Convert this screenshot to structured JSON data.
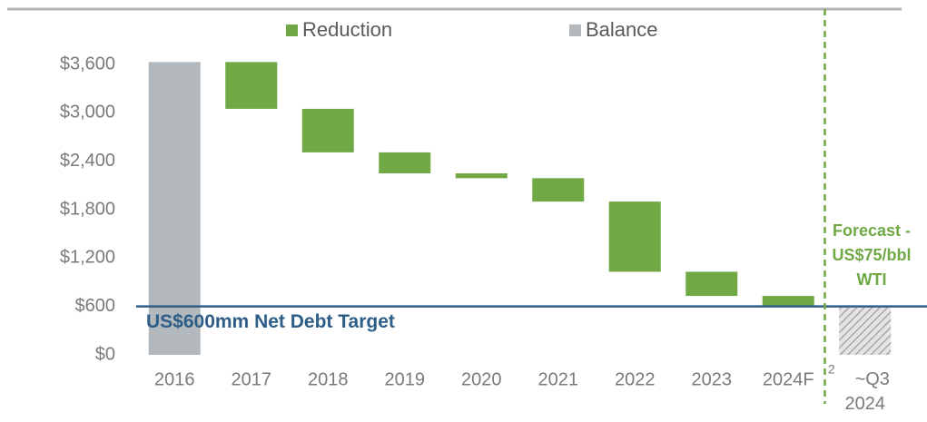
{
  "chart_data": {
    "type": "waterfall",
    "categories": [
      "2016",
      "2017",
      "2018",
      "2019",
      "2020",
      "2021",
      "2022",
      "2023",
      "2024F",
      "~Q3 2024"
    ],
    "category_notes": [
      null,
      null,
      null,
      null,
      null,
      null,
      null,
      null,
      null,
      "2"
    ],
    "series": [
      {
        "name": "Reduction",
        "color": "#70a846",
        "values": [
          null,
          580,
          540,
          260,
          60,
          290,
          870,
          300,
          120,
          null
        ]
      },
      {
        "name": "Balance",
        "color": "#b2b8bb",
        "values": [
          3630,
          null,
          null,
          null,
          null,
          null,
          null,
          null,
          null,
          590
        ],
        "hatched": [
          false,
          false,
          false,
          false,
          false,
          false,
          false,
          false,
          false,
          true
        ]
      }
    ],
    "ylim": [
      0,
      4200
    ],
    "yticks": [
      {
        "value": 0,
        "label": "$0"
      },
      {
        "value": 600,
        "label": "$600"
      },
      {
        "value": 1200,
        "label": "$1,200"
      },
      {
        "value": 1800,
        "label": "$1,800"
      },
      {
        "value": 2400,
        "label": "$2,400"
      },
      {
        "value": 3000,
        "label": "$3,000"
      },
      {
        "value": 3600,
        "label": "$3,600"
      }
    ],
    "target": {
      "value": 600,
      "label": "US$600mm Net Debt Target",
      "color": "#2e5d88"
    },
    "forecast_annotation": {
      "lines": [
        "Forecast -",
        "US$75/bbl",
        "WTI"
      ],
      "color": "#70a846"
    }
  }
}
